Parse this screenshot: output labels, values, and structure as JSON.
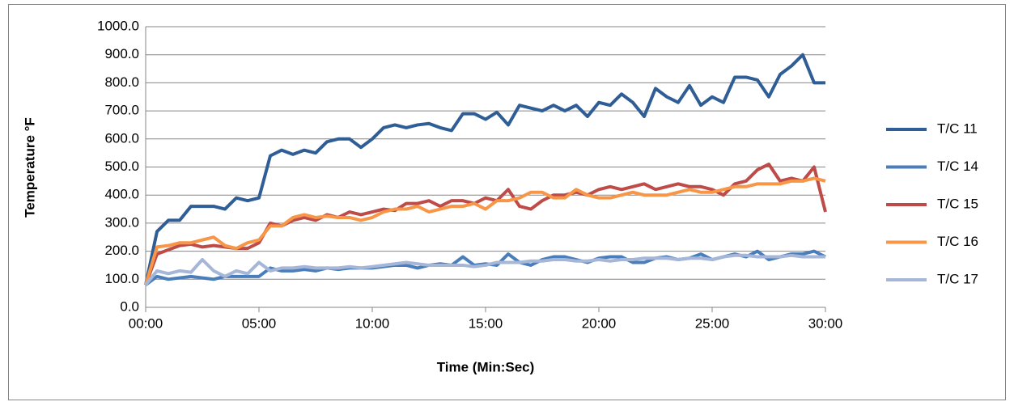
{
  "chart_data": {
    "type": "line",
    "xlabel": "Time (Min:Sec)",
    "ylabel": "Temperature °F",
    "x": [
      0,
      0.5,
      1,
      1.5,
      2,
      2.5,
      3,
      3.5,
      4,
      4.5,
      5,
      5.5,
      6,
      6.5,
      7,
      7.5,
      8,
      8.5,
      9,
      9.5,
      10,
      10.5,
      11,
      11.5,
      12,
      12.5,
      13,
      13.5,
      14,
      14.5,
      15,
      15.5,
      16,
      16.5,
      17,
      17.5,
      18,
      18.5,
      19,
      19.5,
      20,
      20.5,
      21,
      21.5,
      22,
      22.5,
      23,
      23.5,
      24,
      24.5,
      25,
      25.5,
      26,
      26.5,
      27,
      27.5,
      28,
      28.5,
      29,
      29.5,
      30
    ],
    "series": [
      {
        "name": "T/C 11",
        "color": "#2f5d95",
        "values": [
          80,
          270,
          310,
          310,
          360,
          360,
          360,
          350,
          390,
          380,
          390,
          540,
          560,
          545,
          560,
          550,
          590,
          600,
          600,
          570,
          600,
          640,
          650,
          640,
          650,
          655,
          640,
          630,
          690,
          690,
          670,
          695,
          650,
          720,
          710,
          700,
          720,
          700,
          720,
          680,
          730,
          720,
          760,
          730,
          680,
          780,
          750,
          730,
          790,
          720,
          750,
          730,
          820,
          820,
          810,
          750,
          830,
          860,
          900,
          800,
          800
        ]
      },
      {
        "name": "T/C 14",
        "color": "#4a7ebb",
        "values": [
          80,
          110,
          100,
          105,
          110,
          105,
          100,
          110,
          110,
          110,
          110,
          140,
          130,
          130,
          135,
          130,
          140,
          135,
          140,
          140,
          140,
          145,
          150,
          150,
          140,
          150,
          155,
          150,
          180,
          150,
          155,
          150,
          190,
          160,
          150,
          170,
          180,
          180,
          170,
          160,
          175,
          180,
          180,
          160,
          160,
          175,
          180,
          170,
          175,
          190,
          170,
          180,
          190,
          180,
          200,
          170,
          180,
          190,
          190,
          200,
          180
        ]
      },
      {
        "name": "T/C 15",
        "color": "#be4b48",
        "values": [
          80,
          190,
          205,
          220,
          225,
          215,
          220,
          215,
          210,
          210,
          230,
          300,
          290,
          310,
          320,
          310,
          330,
          320,
          340,
          330,
          340,
          350,
          345,
          370,
          370,
          380,
          360,
          380,
          380,
          370,
          390,
          380,
          420,
          360,
          350,
          380,
          400,
          400,
          410,
          400,
          420,
          430,
          420,
          430,
          440,
          420,
          430,
          440,
          430,
          430,
          420,
          400,
          440,
          450,
          490,
          510,
          450,
          460,
          450,
          500,
          340
        ]
      },
      {
        "name": "T/C 16",
        "color": "#f79646",
        "values": [
          80,
          215,
          220,
          230,
          230,
          240,
          250,
          220,
          210,
          230,
          240,
          290,
          290,
          320,
          330,
          320,
          325,
          320,
          320,
          310,
          320,
          340,
          350,
          350,
          360,
          340,
          350,
          360,
          360,
          370,
          350,
          380,
          380,
          390,
          410,
          410,
          390,
          390,
          420,
          400,
          390,
          390,
          400,
          410,
          400,
          400,
          400,
          410,
          420,
          410,
          410,
          420,
          430,
          430,
          440,
          440,
          440,
          450,
          450,
          460,
          450
        ]
      },
      {
        "name": "T/C 17",
        "color": "#a5b6d9",
        "values": [
          80,
          130,
          120,
          130,
          125,
          170,
          130,
          110,
          130,
          120,
          160,
          130,
          140,
          140,
          145,
          140,
          140,
          140,
          145,
          140,
          145,
          150,
          155,
          160,
          155,
          150,
          150,
          150,
          150,
          145,
          150,
          160,
          160,
          160,
          165,
          165,
          170,
          170,
          165,
          165,
          170,
          165,
          170,
          170,
          175,
          175,
          175,
          170,
          175,
          175,
          170,
          180,
          185,
          185,
          180,
          180,
          180,
          185,
          180,
          180,
          180
        ]
      }
    ],
    "xlim": [
      0,
      30
    ],
    "xticks": [
      {
        "value": 0,
        "label": "00:00"
      },
      {
        "value": 5,
        "label": "05:00"
      },
      {
        "value": 10,
        "label": "10:00"
      },
      {
        "value": 15,
        "label": "15:00"
      },
      {
        "value": 20,
        "label": "20:00"
      },
      {
        "value": 25,
        "label": "25:00"
      },
      {
        "value": 30,
        "label": "30:00"
      }
    ],
    "ylim": [
      0,
      1000
    ],
    "yticks": [
      {
        "value": 0,
        "label": "0.0"
      },
      {
        "value": 100,
        "label": "100.0"
      },
      {
        "value": 200,
        "label": "200.0"
      },
      {
        "value": 300,
        "label": "300.0"
      },
      {
        "value": 400,
        "label": "400.0"
      },
      {
        "value": 500,
        "label": "500.0"
      },
      {
        "value": 600,
        "label": "600.0"
      },
      {
        "value": 700,
        "label": "700.0"
      },
      {
        "value": 800,
        "label": "800.0"
      },
      {
        "value": 900,
        "label": "900.0"
      },
      {
        "value": 1000,
        "label": "1000.0"
      }
    ],
    "grid": true,
    "legend": "right"
  }
}
